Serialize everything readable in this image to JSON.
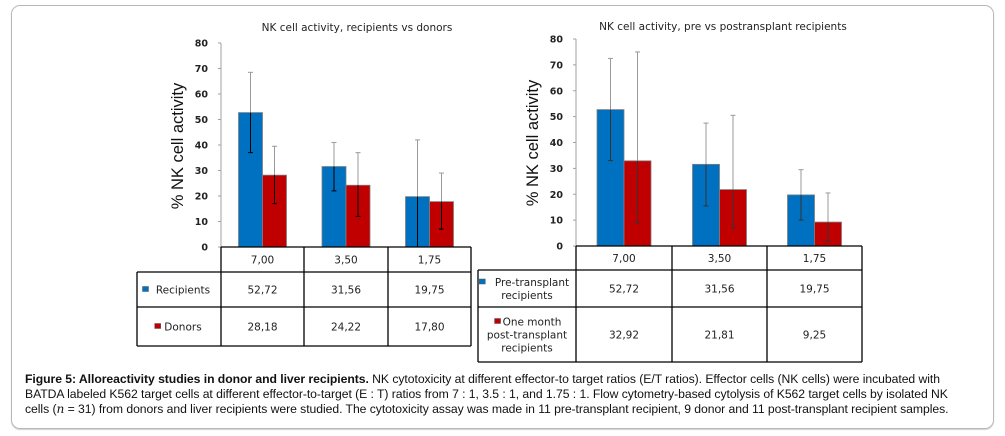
{
  "chart_data": [
    {
      "type": "bar",
      "title": "NK cell activity, recipients vs donors",
      "xlabel": "",
      "ylabel": "% NK cell activity",
      "ylim": [
        0,
        80
      ],
      "yticks": [
        "0",
        "10",
        "20",
        "30",
        "40",
        "50",
        "60",
        "70",
        "80"
      ],
      "categories": [
        "7,00",
        "3,50",
        "1,75"
      ],
      "series": [
        {
          "name": "Recipients",
          "color": "#0070C0",
          "values": [
            52.72,
            31.56,
            19.75
          ],
          "value_labels": [
            "52,72",
            "31,56",
            "19,75"
          ],
          "error_low": [
            37,
            22,
            0
          ],
          "error_high": [
            68.5,
            41,
            42
          ]
        },
        {
          "name": "Donors",
          "color": "#C00000",
          "values": [
            28.18,
            24.22,
            17.8
          ],
          "value_labels": [
            "28,18",
            "24,22",
            "17,80"
          ],
          "error_low": [
            17,
            12,
            7
          ],
          "error_high": [
            39.5,
            37,
            29
          ]
        }
      ],
      "legend": "data-table-below",
      "grid": false
    },
    {
      "type": "bar",
      "title": "NK cell activity, pre vs postransplant recipients",
      "xlabel": "",
      "ylabel": "% NK cell activity",
      "ylim": [
        0,
        80
      ],
      "yticks": [
        "0",
        "10",
        "20",
        "30",
        "40",
        "50",
        "60",
        "70",
        "80"
      ],
      "categories": [
        "7,00",
        "3,50",
        "1,75"
      ],
      "series": [
        {
          "name": "Pre-transplant recipients",
          "name_lines": [
            "Pre-transplant",
            "recipients"
          ],
          "color": "#0070C0",
          "values": [
            52.72,
            31.56,
            19.75
          ],
          "value_labels": [
            "52,72",
            "31,56",
            "19,75"
          ],
          "error_low": [
            33,
            15.5,
            10
          ],
          "error_high": [
            72.5,
            47.5,
            29.5
          ]
        },
        {
          "name": "One month post-transplant recipients",
          "name_lines": [
            "One month",
            "post-transplant",
            "recipients"
          ],
          "color": "#C00000",
          "values": [
            32.92,
            21.81,
            9.25
          ],
          "value_labels": [
            "32,92",
            "21,81",
            "9,25"
          ],
          "error_low": [
            9,
            7,
            2
          ],
          "error_high": [
            75,
            50.5,
            20.5
          ]
        }
      ],
      "legend": "data-table-below",
      "grid": false
    }
  ],
  "caption": {
    "bold": "Figure 5: Alloreactivity studies in donor and liver recipients.",
    "text_lines": [
      " NK cytotoxicity at different effector-to target ratios (E/T ratios). Effector cells (NK cells) were incubated with",
      "BATDA labeled K562 target cells at different effector-to-target (E : T) ratios from 7 : 1, 3.5 : 1, and 1.75 : 1. Flow cytometry-based cytolysis of K562 target cells by isolated NK",
      "cells (",
      "n",
      " = 31) from donors and liver recipients were studied. The cytotoxicity assay was made in 11 pre-transplant recipient, 9 donor and 11 post-transplant recipient samples."
    ]
  }
}
